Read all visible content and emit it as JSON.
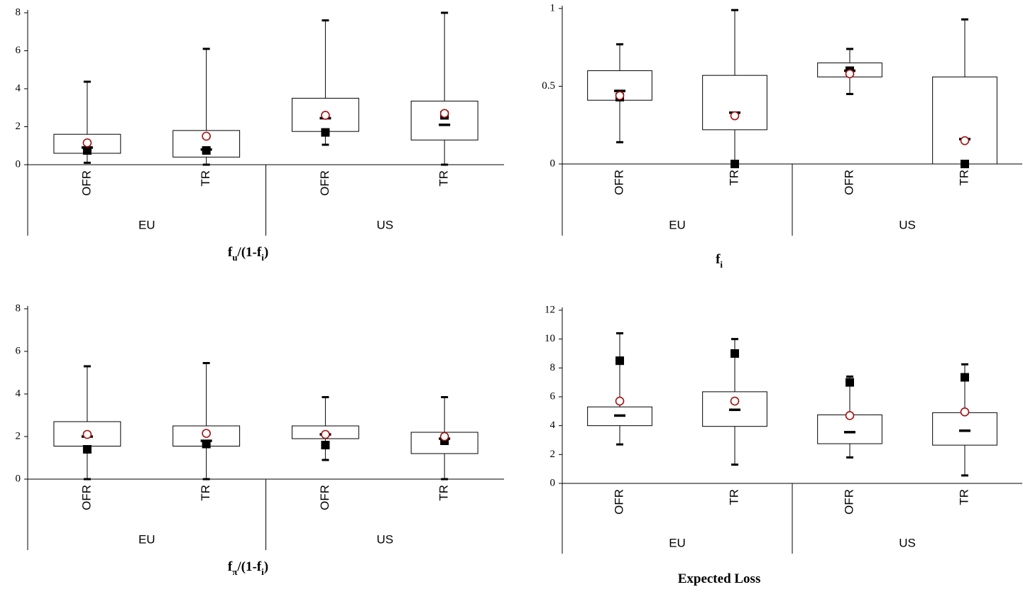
{
  "chart_data": [
    {
      "type": "box",
      "title": [
        {
          "text": "f",
          "sub": false
        },
        {
          "text": "u",
          "sub": true
        },
        {
          "text": "/(1-f",
          "sub": false
        },
        {
          "text": "i",
          "sub": true
        },
        {
          "text": ")",
          "sub": false
        }
      ],
      "categories": [
        "OFR",
        "TR",
        "OFR",
        "TR"
      ],
      "groups": [
        "EU",
        "US"
      ],
      "ylim": [
        0,
        8
      ],
      "yticks": [
        0,
        2,
        4,
        6,
        8
      ],
      "stats": {
        "min": [
          0.1,
          0,
          1.05,
          0
        ],
        "q1": [
          0.6,
          0.4,
          1.75,
          1.3
        ],
        "median": [
          0.9,
          0.8,
          2.45,
          2.1
        ],
        "q3": [
          1.6,
          1.8,
          3.5,
          3.35
        ],
        "max": [
          4.37,
          6.1,
          7.6,
          8.0
        ],
        "mean": [
          1.15,
          1.5,
          2.6,
          2.7
        ],
        "marker": [
          0.75,
          0.75,
          1.7,
          2.6
        ]
      },
      "box_color": "#ffffff",
      "mean_color": "#a01010",
      "marker_color": "#000000"
    },
    {
      "type": "box",
      "title": [
        {
          "text": "f",
          "sub": false
        },
        {
          "text": "i",
          "sub": true
        }
      ],
      "categories": [
        "OFR",
        "TR",
        "OFR",
        "TR"
      ],
      "groups": [
        "EU",
        "US"
      ],
      "ylim": [
        0,
        1
      ],
      "yticks": [
        0,
        0.5,
        1
      ],
      "stats": {
        "min": [
          0.14,
          0,
          0.45,
          0
        ],
        "q1": [
          0.41,
          0.22,
          0.56,
          0
        ],
        "median": [
          0.47,
          0.33,
          0.6,
          0.16
        ],
        "q3": [
          0.6,
          0.57,
          0.65,
          0.56
        ],
        "max": [
          0.77,
          0.99,
          0.74,
          0.93
        ],
        "mean": [
          0.44,
          0.31,
          0.58,
          0.15
        ],
        "marker": [
          0.43,
          0,
          0.6,
          0
        ]
      },
      "box_color": "#ffffff",
      "mean_color": "#a01010",
      "marker_color": "#000000"
    },
    {
      "type": "box",
      "title": [
        {
          "text": "f",
          "sub": false
        },
        {
          "text": "π",
          "sub": true
        },
        {
          "text": "/(1-f",
          "sub": false
        },
        {
          "text": "i",
          "sub": true
        },
        {
          "text": ")",
          "sub": false
        }
      ],
      "categories": [
        "OFR",
        "TR",
        "OFR",
        "TR"
      ],
      "groups": [
        "EU",
        "US"
      ],
      "ylim": [
        0,
        8
      ],
      "yticks": [
        0,
        2,
        4,
        6,
        8
      ],
      "stats": {
        "min": [
          0,
          0,
          0.9,
          0
        ],
        "q1": [
          1.55,
          1.55,
          1.9,
          1.2
        ],
        "median": [
          2.0,
          1.8,
          2.1,
          1.9
        ],
        "q3": [
          2.7,
          2.5,
          2.5,
          2.2
        ],
        "max": [
          5.3,
          5.45,
          3.85,
          3.85
        ],
        "mean": [
          2.1,
          2.15,
          2.1,
          2.0
        ],
        "marker": [
          1.4,
          1.65,
          1.6,
          1.8
        ]
      },
      "box_color": "#ffffff",
      "mean_color": "#a01010",
      "marker_color": "#000000"
    },
    {
      "type": "box",
      "title": [
        {
          "text": "Expected Loss",
          "sub": false
        }
      ],
      "categories": [
        "OFR",
        "TR",
        "OFR",
        "TR"
      ],
      "groups": [
        "EU",
        "US"
      ],
      "ylim": [
        0,
        12
      ],
      "yticks": [
        0,
        2,
        4,
        6,
        8,
        10,
        12
      ],
      "stats": {
        "min": [
          2.7,
          1.3,
          1.8,
          0.55
        ],
        "q1": [
          4.0,
          3.95,
          2.75,
          2.65
        ],
        "median": [
          4.7,
          5.1,
          3.55,
          3.65
        ],
        "q3": [
          5.3,
          6.35,
          4.75,
          4.9
        ],
        "max": [
          10.4,
          10.0,
          7.4,
          8.25
        ],
        "mean": [
          5.7,
          5.7,
          4.7,
          4.95
        ],
        "marker": [
          8.5,
          9.0,
          7.0,
          7.35
        ]
      },
      "box_color": "#ffffff",
      "mean_color": "#a01010",
      "marker_color": "#000000"
    }
  ]
}
